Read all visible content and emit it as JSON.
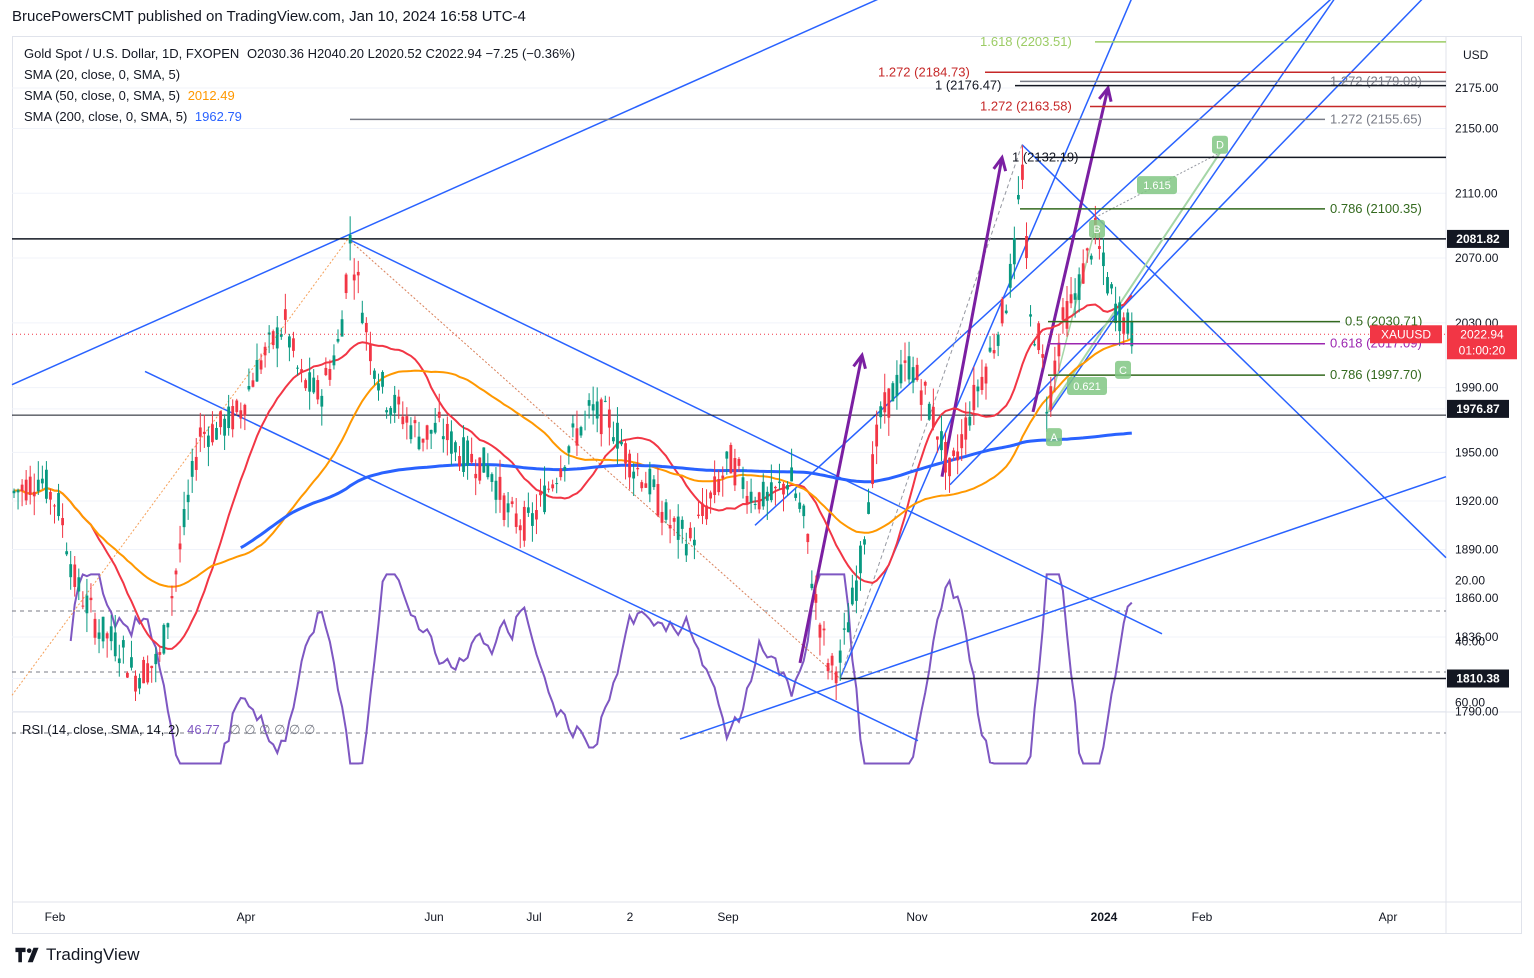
{
  "header": {
    "publisher": "BrucePowersCMT published on TradingView.com, Jan 10, 2024 16:58 UTC-4"
  },
  "legend": {
    "title": "Gold Spot / U.S. Dollar, 1D, FXOPEN",
    "ohlc": "O2030.36  H2040.20  L2020.52  C2022.94  −7.25 (−0.36%)",
    "sma20": "SMA (20, close, 0, SMA, 5)",
    "sma50": "SMA (50, close, 0, SMA, 5)",
    "sma50_value": "2012.49",
    "sma200": "SMA (200, close, 0, SMA, 5)",
    "sma200_value": "1962.79"
  },
  "rsi_legend": {
    "label": "RSI (14, close, SMA, 14, 2)",
    "value": "46.77",
    "extra": "∅ ∅ ∅ ∅ ∅ ∅"
  },
  "currency": "USD",
  "footer": {
    "brand": "TradingView"
  },
  "colors": {
    "up": "#089981",
    "down": "#f23645",
    "sma20": "#f23645",
    "sma50": "#ff9800",
    "sma200": "#2962ff",
    "trend": "#2962ff",
    "purple": "#7b1fa2",
    "rsi": "#7e57c2",
    "green_fib": "#33691e",
    "red_fib": "#c62828",
    "grey_fib": "#787b86",
    "lime_fib": "#9ccc65"
  },
  "chart_data": {
    "type": "candlestick",
    "title": "Gold Spot / U.S. Dollar, 1D, FXOPEN",
    "symbol": "XAUUSD",
    "y_axis": {
      "ticks": [
        1790.0,
        1810.38,
        1836.0,
        1860.0,
        1890.0,
        1920.0,
        1950.0,
        1976.87,
        1990.0,
        2030.0,
        2070.0,
        2081.82,
        2110.0,
        2150.0,
        2175.0
      ],
      "label": "USD"
    },
    "x_axis": {
      "ticks": [
        "Feb",
        "Apr",
        "Jun",
        "Jul",
        "2",
        "Sep",
        "Nov",
        "2024",
        "Feb",
        "Apr"
      ]
    },
    "last": {
      "price": "2022.94",
      "countdown": "01:00:20",
      "symbol": "XAUUSD"
    },
    "key_price_labels": [
      {
        "value": "2081.82",
        "kind": "horizontal"
      },
      {
        "value": "1976.87",
        "kind": "horizontal"
      },
      {
        "value": "1810.38",
        "kind": "horizontal"
      }
    ],
    "fib_labels": [
      {
        "text": "1.618 (2203.51)",
        "price": 2203.51,
        "color": "lime"
      },
      {
        "text": "1.272 (2184.73)",
        "price": 2184.73,
        "color": "red"
      },
      {
        "text": "1.272 (2179.09)",
        "price": 2179.09,
        "color": "grey"
      },
      {
        "text": "1 (2176.47)",
        "price": 2176.47,
        "color": "black"
      },
      {
        "text": "1.272 (2163.58)",
        "price": 2163.58,
        "color": "red"
      },
      {
        "text": "1.272 (2155.65)",
        "price": 2155.65,
        "color": "grey"
      },
      {
        "text": "1 (2132.19)",
        "price": 2132.19,
        "color": "black"
      },
      {
        "text": "0.786 (2100.35)",
        "price": 2100.35,
        "color": "green"
      },
      {
        "text": "0.5 (2030.71)",
        "price": 2030.71,
        "color": "green"
      },
      {
        "text": "0.618 (2017.09)",
        "price": 2017.09,
        "color": "purple"
      },
      {
        "text": "0.786 (1997.70)",
        "price": 1997.7,
        "color": "green"
      }
    ],
    "pattern_points": [
      {
        "label": "A",
        "price": 1973
      },
      {
        "label": "B",
        "price": 2088
      },
      {
        "label": "C",
        "price": 2017
      },
      {
        "label": "D",
        "price": 2140
      }
    ],
    "pattern_ratios": [
      "1.615",
      "0.621"
    ],
    "anchor_prices": {
      "swing_high_may": 2081.82,
      "swing_low_oct": 1810.38,
      "peak_dec": 2140,
      "low_dec": 1973
    },
    "rsi": {
      "value": 46.77,
      "levels": [
        20.0,
        40.0,
        60.0
      ],
      "band": [
        30,
        70
      ]
    }
  }
}
